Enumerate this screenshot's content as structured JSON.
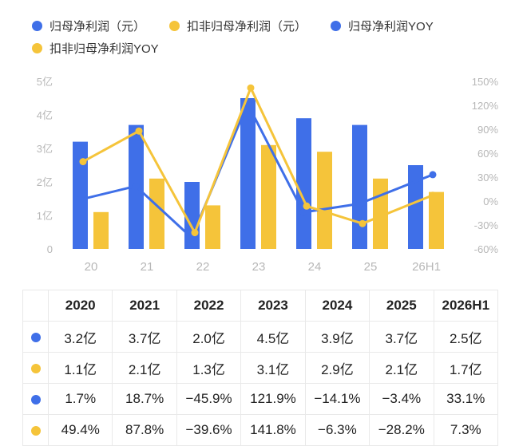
{
  "legend": {
    "items": [
      {
        "label": "归母净利润（元）",
        "color": "#3f6fe8"
      },
      {
        "label": "扣非归母净利润（元）",
        "color": "#f5c43a"
      },
      {
        "label": "归母净利润YOY",
        "color": "#3f6fe8"
      },
      {
        "label": "扣非归母净利润YOY",
        "color": "#f5c43a"
      }
    ]
  },
  "chart_data": {
    "type": "bar",
    "categories": [
      "20",
      "21",
      "22",
      "23",
      "24",
      "25",
      "26H1"
    ],
    "series": [
      {
        "name": "归母净利润（元）",
        "kind": "bar",
        "axis": "left",
        "color": "#3f6fe8",
        "values": [
          3.2,
          3.7,
          2.0,
          4.5,
          3.9,
          3.7,
          2.5
        ]
      },
      {
        "name": "扣非归母净利润（元）",
        "kind": "bar",
        "axis": "left",
        "color": "#f5c43a",
        "values": [
          1.1,
          2.1,
          1.3,
          3.1,
          2.9,
          2.1,
          1.7
        ]
      },
      {
        "name": "归母净利润YOY",
        "kind": "line",
        "axis": "right",
        "color": "#3f6fe8",
        "values": [
          1.7,
          18.7,
          -45.9,
          121.9,
          -14.1,
          -3.4,
          33.1
        ]
      },
      {
        "name": "扣非归母净利润YOY",
        "kind": "line",
        "axis": "right",
        "color": "#f5c43a",
        "values": [
          49.4,
          87.8,
          -39.6,
          141.8,
          -6.3,
          -28.2,
          7.3
        ]
      }
    ],
    "left_axis": {
      "ylim": [
        0,
        5
      ],
      "ticks": [
        "0",
        "1亿",
        "2亿",
        "3亿",
        "4亿",
        "5亿"
      ]
    },
    "right_axis": {
      "ylim": [
        -60,
        150
      ],
      "ticks": [
        "-60%",
        "-30%",
        "0%",
        "30%",
        "60%",
        "90%",
        "120%",
        "150%"
      ]
    },
    "legend_placement": "top",
    "grid": false
  },
  "table": {
    "header": [
      "2020",
      "2021",
      "2022",
      "2023",
      "2024",
      "2025",
      "2026H1"
    ],
    "rows": [
      {
        "color": "#3f6fe8",
        "cells": [
          "3.2亿",
          "3.7亿",
          "2.0亿",
          "4.5亿",
          "3.9亿",
          "3.7亿",
          "2.5亿"
        ]
      },
      {
        "color": "#f5c43a",
        "cells": [
          "1.1亿",
          "2.1亿",
          "1.3亿",
          "3.1亿",
          "2.9亿",
          "2.1亿",
          "1.7亿"
        ]
      },
      {
        "color": "#3f6fe8",
        "cells": [
          "1.7%",
          "18.7%",
          "−45.9%",
          "121.9%",
          "−14.1%",
          "−3.4%",
          "33.1%"
        ]
      },
      {
        "color": "#f5c43a",
        "cells": [
          "49.4%",
          "87.8%",
          "−39.6%",
          "141.8%",
          "−6.3%",
          "−28.2%",
          "7.3%"
        ]
      }
    ]
  }
}
